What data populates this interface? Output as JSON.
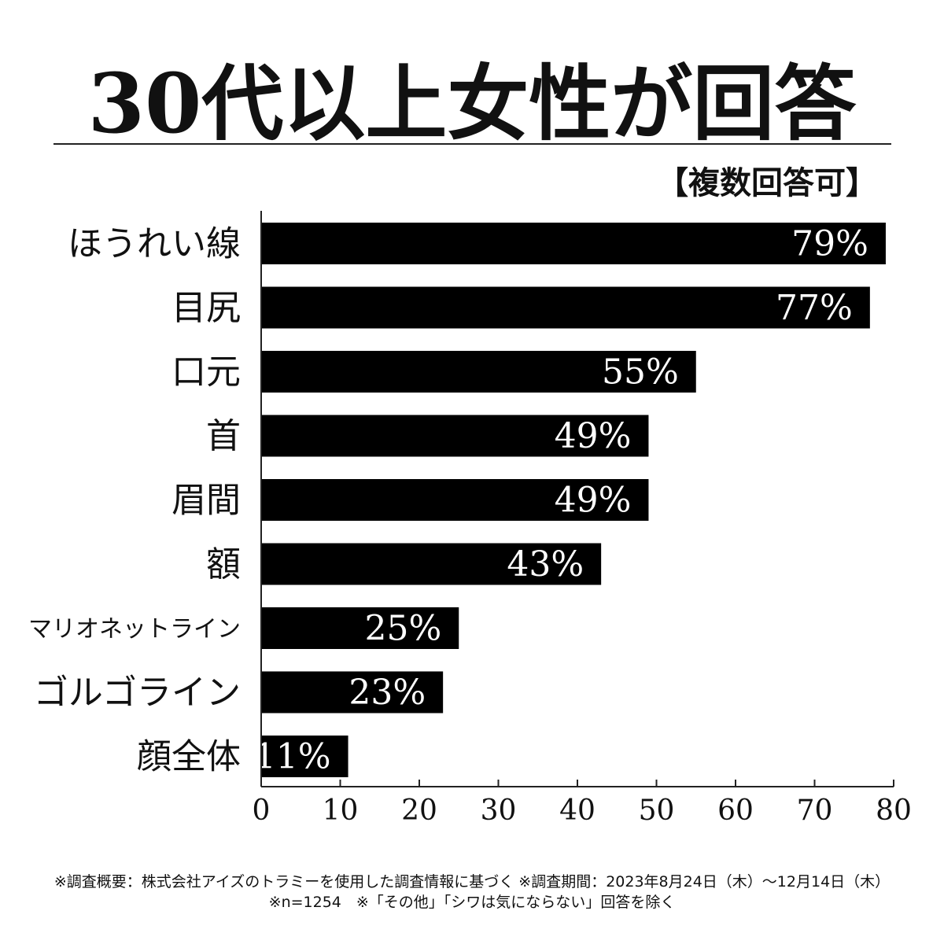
{
  "chart_data": {
    "type": "bar",
    "orientation": "horizontal",
    "title": "30代以上女性が回答",
    "subtitle": "【複数回答可】",
    "categories": [
      "ほうれい線",
      "目尻",
      "口元",
      "首",
      "眉間",
      "額",
      "マリオネットライン",
      "ゴルゴライン",
      "顔全体"
    ],
    "values": [
      79,
      77,
      55,
      49,
      49,
      43,
      25,
      23,
      11
    ],
    "value_labels": [
      "79%",
      "77%",
      "55%",
      "49%",
      "49%",
      "43%",
      "25%",
      "23%",
      "11%"
    ],
    "xlim": [
      0,
      80
    ],
    "xticks": [
      0,
      10,
      20,
      30,
      40,
      50,
      60,
      70,
      80
    ],
    "grid": false,
    "bar_color": "#000000",
    "label_color": "#ffffff"
  },
  "footnotes": {
    "line1": "※調査概要：株式会社アイズのトラミーを使用した調査情報に基づく ※調査期間：2023年8月24日（木）〜12月14日（木）",
    "line2": "※n=1254　※「その他」「シワは気にならない」回答を除く"
  }
}
